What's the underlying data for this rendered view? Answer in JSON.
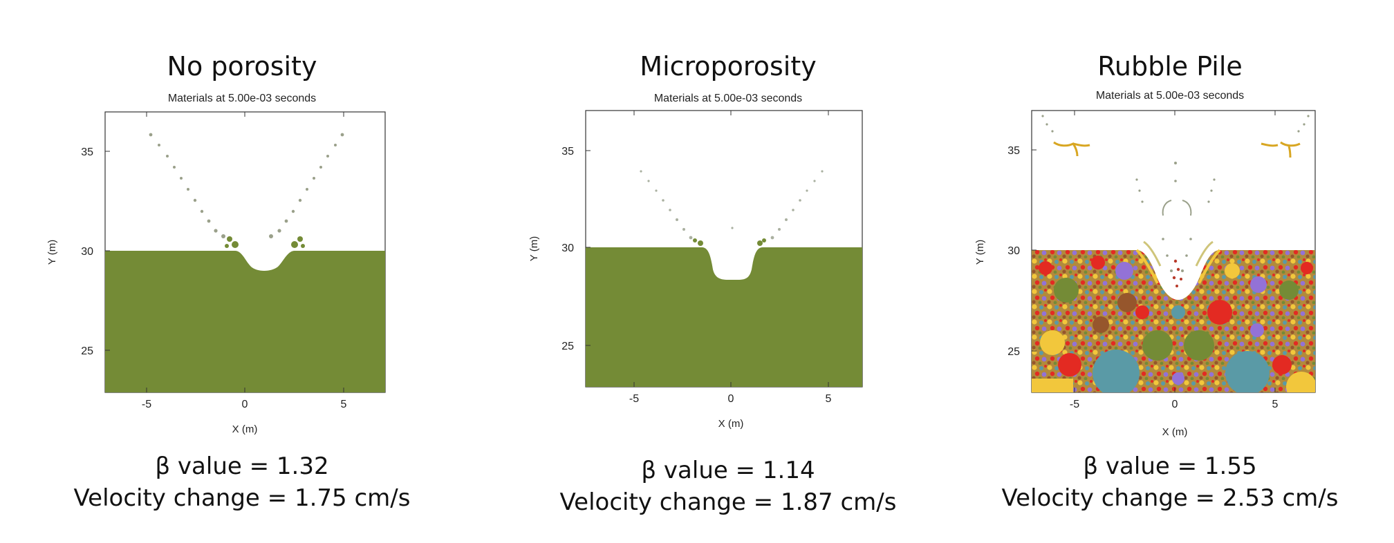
{
  "figure": {
    "panels": [
      {
        "id": "no-porosity",
        "title": "No porosity",
        "subtitle": "Materials at 5.00e-03 seconds",
        "x_label": "X (m)",
        "y_label": "Y (m)",
        "x_ticks": [
          "-5",
          "0",
          "5"
        ],
        "y_ticks": [
          "35",
          "30",
          "25"
        ],
        "beta_text": "β value = 1.32",
        "velocity_text": "Velocity change = 1.75 cm/s",
        "surface_y": 30.0,
        "crater_depth_y": 29.0
      },
      {
        "id": "microporosity",
        "title": "Microporosity",
        "subtitle": "Materials at 5.00e-03 seconds",
        "x_label": "X (m)",
        "y_label": "Y (m)",
        "x_ticks": [
          "-5",
          "0",
          "5"
        ],
        "y_ticks": [
          "35",
          "30",
          "25"
        ],
        "beta_text": "β value = 1.14",
        "velocity_text": "Velocity change = 1.87 cm/s",
        "surface_y": 30.0,
        "crater_depth_y": 28.3
      },
      {
        "id": "rubble-pile",
        "title": "Rubble Pile",
        "subtitle": "Materials at 5.00e-03 seconds",
        "x_label": "X (m)",
        "y_label": "Y (m)",
        "x_ticks": [
          "-5",
          "0",
          "5"
        ],
        "y_ticks": [
          "35",
          "30",
          "25"
        ],
        "beta_text": "β value = 1.55",
        "velocity_text": "Velocity change = 2.53 cm/s",
        "surface_y": 30.0,
        "crater_depth_y": 27.0
      }
    ],
    "colors": {
      "solid": "#748b36",
      "rubble_red": "#e32a22",
      "rubble_yellow": "#f2c73c",
      "rubble_teal": "#5a9aa6",
      "rubble_purple": "#9372d6",
      "rubble_brown": "#96562c",
      "ejecta_grey": "#9aa08a"
    }
  }
}
